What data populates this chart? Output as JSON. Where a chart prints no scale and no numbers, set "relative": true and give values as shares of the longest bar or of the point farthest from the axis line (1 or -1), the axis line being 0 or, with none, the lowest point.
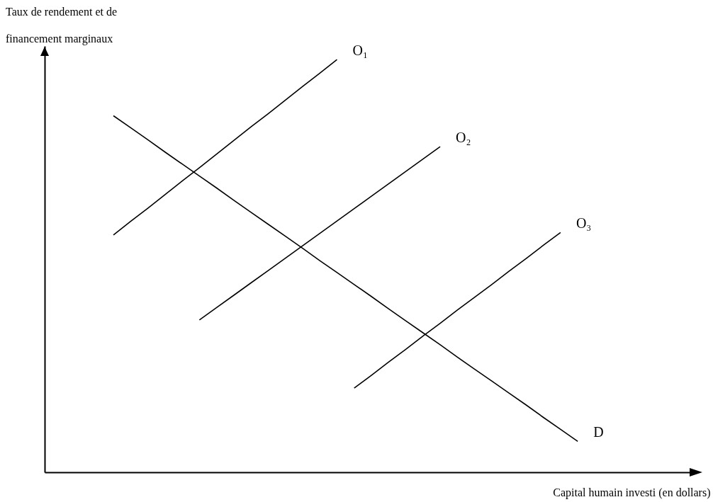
{
  "chart_data": {
    "type": "line",
    "relative": true,
    "xlabel": "Capital humain investi (en dollars)",
    "ylabel": "Taux de rendement et de financement marginaux",
    "legend": false,
    "marker": "none",
    "line_style": "solid",
    "categories": [
      null,
      null,
      null,
      null,
      null,
      null,
      null,
      null,
      null,
      null,
      null,
      null,
      null,
      null,
      null,
      null,
      null,
      null,
      null,
      null,
      null,
      null,
      null,
      null,
      null,
      null,
      null,
      null,
      null,
      null,
      null,
      null,
      null,
      null,
      null,
      null,
      null,
      null,
      null
    ],
    "series": [
      {
        "name": "O₁",
        "color": "#000000",
        "values": [
          null,
          null,
          null,
          null,
          0.575,
          0.608,
          0.64,
          0.673,
          0.706,
          0.738,
          0.771,
          0.804,
          0.837,
          0.869,
          0.902,
          0.935,
          0.967,
          1.0,
          null,
          null,
          null,
          null,
          null,
          null,
          null,
          null,
          null,
          null,
          null,
          null,
          null,
          null,
          null,
          null,
          null,
          null,
          null,
          null,
          null
        ]
      },
      {
        "name": "O₂",
        "color": "#000000",
        "values": [
          null,
          null,
          null,
          null,
          null,
          null,
          null,
          null,
          null,
          0.369,
          0.399,
          0.429,
          0.459,
          0.489,
          0.519,
          0.549,
          0.579,
          0.609,
          0.639,
          0.669,
          0.699,
          0.729,
          0.759,
          0.789,
          null,
          null,
          null,
          null,
          null,
          null,
          null,
          null,
          null,
          null,
          null,
          null,
          null,
          null,
          null
        ]
      },
      {
        "name": "O₃",
        "color": "#000000",
        "values": [
          null,
          null,
          null,
          null,
          null,
          null,
          null,
          null,
          null,
          null,
          null,
          null,
          null,
          null,
          null,
          null,
          null,
          null,
          0.204,
          0.235,
          0.267,
          0.298,
          0.33,
          0.361,
          0.393,
          0.424,
          0.455,
          0.487,
          0.518,
          0.55,
          0.581,
          null,
          null,
          null,
          null,
          null,
          null,
          null,
          null
        ]
      },
      {
        "name": "D",
        "color": "#000000",
        "values": [
          null,
          null,
          null,
          null,
          0.864,
          0.835,
          0.806,
          0.776,
          0.747,
          0.718,
          0.689,
          0.659,
          0.63,
          0.601,
          0.572,
          0.543,
          0.513,
          0.484,
          0.455,
          0.426,
          0.396,
          0.367,
          0.338,
          0.309,
          0.279,
          0.25,
          0.221,
          0.192,
          0.163,
          0.133,
          0.104,
          0.075,
          null,
          null,
          null,
          null,
          null,
          null,
          null
        ]
      }
    ]
  }
}
